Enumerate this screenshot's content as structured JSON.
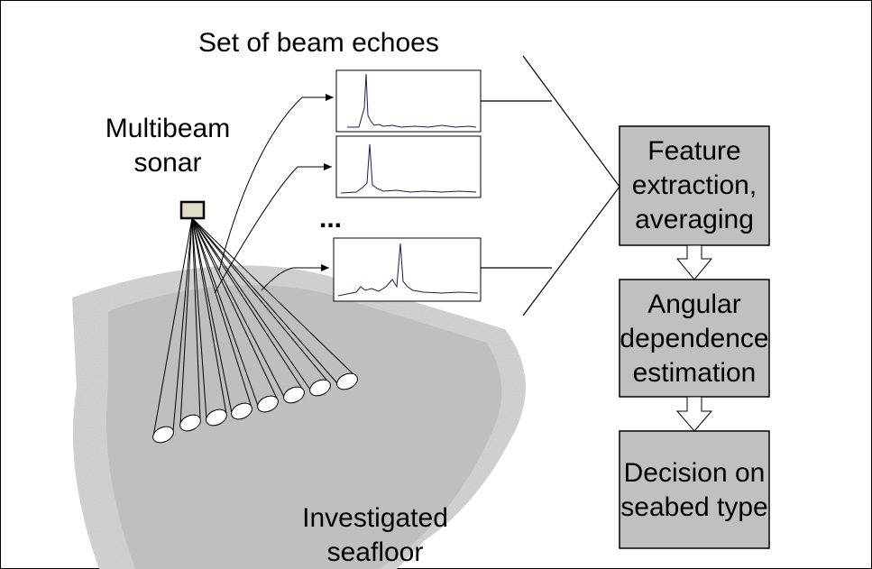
{
  "echoes_label": "Set of beam echoes",
  "sonar_label": {
    "lines": [
      "Multibeam",
      "sonar"
    ]
  },
  "ellipsis": "...",
  "seafloor_label": {
    "lines": [
      "Investigated",
      "seafloor"
    ]
  },
  "steps": [
    {
      "lines": [
        "Feature",
        "extraction,",
        "averaging"
      ]
    },
    {
      "lines": [
        "Angular",
        "dependence",
        "estimation"
      ]
    },
    {
      "lines": [
        "Decision on",
        "seabed type"
      ]
    }
  ]
}
